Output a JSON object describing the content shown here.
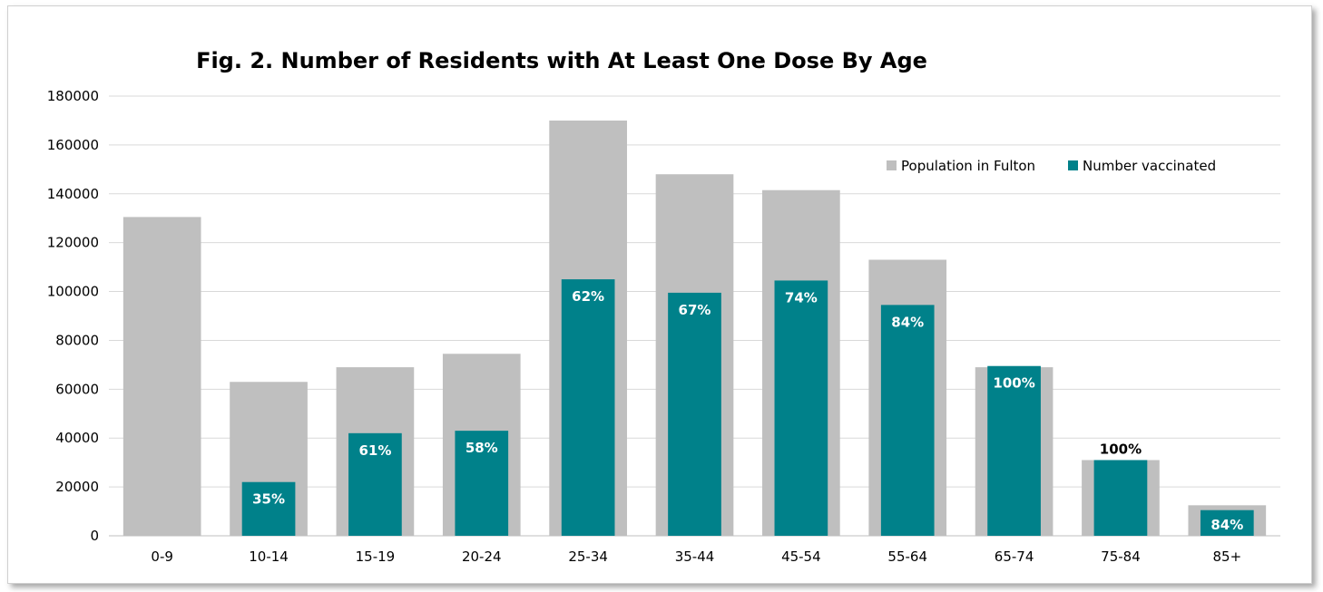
{
  "chart_data": {
    "type": "bar",
    "title": "Fig. 2. Number of Residents with At Least One Dose By Age",
    "xlabel": "",
    "ylabel": "",
    "ylim": [
      0,
      180000
    ],
    "yticks": [
      0,
      20000,
      40000,
      60000,
      80000,
      100000,
      120000,
      140000,
      160000,
      180000
    ],
    "grid": true,
    "legend_position": "top-right",
    "categories": [
      "0-9",
      "10-14",
      "15-19",
      "20-24",
      "25-34",
      "35-44",
      "45-54",
      "55-64",
      "65-74",
      "75-84",
      "85+"
    ],
    "series": [
      {
        "name": "Population in Fulton",
        "color": "#bfbfbf",
        "values": [
          130500,
          63000,
          69000,
          74500,
          170000,
          148000,
          141500,
          113000,
          69000,
          31000,
          12500
        ]
      },
      {
        "name": "Number vaccinated",
        "color": "#00818a",
        "values": [
          0,
          22000,
          42000,
          43000,
          105000,
          99500,
          104500,
          94500,
          69500,
          31000,
          10500
        ]
      }
    ],
    "data_labels": [
      "",
      "35%",
      "61%",
      "58%",
      "62%",
      "67%",
      "74%",
      "84%",
      "100%",
      "100%",
      "84%"
    ]
  }
}
